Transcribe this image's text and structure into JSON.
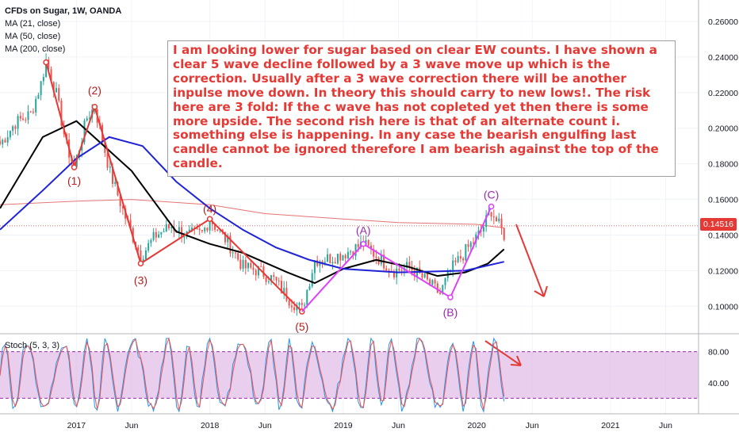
{
  "header": {
    "title": "CFDs on Sugar, 1W, OANDA",
    "indicators": [
      "MA (21, close)",
      "MA (50, close)",
      "MA (200, close)"
    ],
    "stoch_label": "Stoch (5, 3, 3)"
  },
  "annotation_text": "I am looking lower for sugar based on clear EW counts. I have shown a clear 5 wave decline followed by a 3 wave move up which is the correction. Usually after a 3 wave correction there will be another inpulse move down. In theory this should carry to new lows!. The risk here are 3 fold: If the c wave has not copleted yet then there is some more upside. The second rish here is that of an alternate count i. something else is happening. In any case the bearish engulfing last candle cannot be ignored therefore I am bearish against the top of the candle.",
  "colors": {
    "up_candle": "#26a69a",
    "down_candle": "#ef5350",
    "ma21": "#000000",
    "ma50": "#1e22d8",
    "ma200": "#e57373",
    "wave_red": "#e53935",
    "wave_purple": "#e040fb",
    "stoch_k": "#2196f3",
    "stoch_d": "#ef5350",
    "stoch_band": "#e1bee7"
  },
  "chart_data": {
    "type": "candlestick",
    "symbol": "CFDs on Sugar",
    "interval": "1W",
    "x_ticks": [
      "2017",
      "Jun",
      "2018",
      "Jun",
      "2019",
      "Jun",
      "2020",
      "Jun",
      "2021",
      "Jun"
    ],
    "x_tick_dates": [
      "2017-01-01",
      "2017-06-01",
      "2018-01-01",
      "2018-06-01",
      "2019-01-01",
      "2019-06-01",
      "2020-01-01",
      "2020-06-01",
      "2021-01-01",
      "2021-06-01"
    ],
    "y_ticks": [
      "0.10000",
      "0.12000",
      "0.14000",
      "0.16000",
      "0.18000",
      "0.20000",
      "0.22000",
      "0.24000",
      "0.26000"
    ],
    "ylim": [
      0.085,
      0.272
    ],
    "last_price": "0.14516",
    "price_path": [
      [
        "2016-06-06",
        0.191
      ],
      [
        "2016-07-18",
        0.203
      ],
      [
        "2016-08-29",
        0.208
      ],
      [
        "2016-09-26",
        0.225
      ],
      [
        "2016-10-10",
        0.238
      ],
      [
        "2016-11-07",
        0.219
      ],
      [
        "2016-12-05",
        0.19
      ],
      [
        "2016-12-26",
        0.178
      ],
      [
        "2017-01-30",
        0.206
      ],
      [
        "2017-02-20",
        0.212
      ],
      [
        "2017-04-03",
        0.175
      ],
      [
        "2017-05-15",
        0.15
      ],
      [
        "2017-06-26",
        0.128
      ],
      [
        "2017-08-07",
        0.14
      ],
      [
        "2017-09-18",
        0.145
      ],
      [
        "2017-10-30",
        0.14
      ],
      [
        "2017-12-11",
        0.141
      ],
      [
        "2018-01-01",
        0.149
      ],
      [
        "2018-02-19",
        0.136
      ],
      [
        "2018-04-02",
        0.122
      ],
      [
        "2018-05-14",
        0.12
      ],
      [
        "2018-06-25",
        0.115
      ],
      [
        "2018-08-06",
        0.104
      ],
      [
        "2018-09-10",
        0.098
      ],
      [
        "2018-10-15",
        0.126
      ],
      [
        "2018-11-26",
        0.127
      ],
      [
        "2019-01-07",
        0.13
      ],
      [
        "2019-02-25",
        0.135
      ],
      [
        "2019-04-08",
        0.127
      ],
      [
        "2019-05-20",
        0.12
      ],
      [
        "2019-07-01",
        0.122
      ],
      [
        "2019-08-12",
        0.115
      ],
      [
        "2019-09-23",
        0.107
      ],
      [
        "2019-10-21",
        0.12
      ],
      [
        "2019-12-02",
        0.131
      ],
      [
        "2020-01-13",
        0.142
      ],
      [
        "2020-02-10",
        0.154
      ],
      [
        "2020-02-24",
        0.148
      ],
      [
        "2020-03-16",
        0.14
      ]
    ],
    "series": [
      {
        "name": "MA (21, close)",
        "points": [
          [
            "2016-06-06",
            0.155
          ],
          [
            "2016-10-01",
            0.195
          ],
          [
            "2017-01-01",
            0.204
          ],
          [
            "2017-06-01",
            0.176
          ],
          [
            "2017-10-01",
            0.142
          ],
          [
            "2018-01-01",
            0.135
          ],
          [
            "2018-04-01",
            0.13
          ],
          [
            "2018-08-01",
            0.119
          ],
          [
            "2018-10-15",
            0.113
          ],
          [
            "2019-01-01",
            0.121
          ],
          [
            "2019-04-01",
            0.126
          ],
          [
            "2019-07-01",
            0.122
          ],
          [
            "2019-09-15",
            0.117
          ],
          [
            "2019-12-01",
            0.119
          ],
          [
            "2020-02-01",
            0.124
          ],
          [
            "2020-03-16",
            0.132
          ]
        ]
      },
      {
        "name": "MA (50, close)",
        "points": [
          [
            "2016-06-06",
            0.143
          ],
          [
            "2016-10-01",
            0.165
          ],
          [
            "2017-01-01",
            0.183
          ],
          [
            "2017-04-01",
            0.195
          ],
          [
            "2017-07-01",
            0.19
          ],
          [
            "2017-10-01",
            0.17
          ],
          [
            "2018-01-01",
            0.155
          ],
          [
            "2018-04-01",
            0.143
          ],
          [
            "2018-07-01",
            0.133
          ],
          [
            "2018-10-01",
            0.126
          ],
          [
            "2019-01-01",
            0.121
          ],
          [
            "2019-06-01",
            0.119
          ],
          [
            "2019-12-01",
            0.12
          ],
          [
            "2020-03-16",
            0.125
          ]
        ]
      },
      {
        "name": "MA (200, close)",
        "points": [
          [
            "2016-06-06",
            0.157
          ],
          [
            "2017-01-01",
            0.159
          ],
          [
            "2017-06-01",
            0.16
          ],
          [
            "2018-01-01",
            0.157
          ],
          [
            "2018-06-01",
            0.152
          ],
          [
            "2019-01-01",
            0.149
          ],
          [
            "2019-06-01",
            0.147
          ],
          [
            "2020-01-01",
            0.146
          ],
          [
            "2020-03-16",
            0.144
          ]
        ]
      }
    ],
    "red_wave_labels": [
      {
        "label": "(1)",
        "date": "2016-12-26",
        "price": 0.178
      },
      {
        "label": "(2)",
        "date": "2017-02-20",
        "price": 0.212
      },
      {
        "label": "(3)",
        "date": "2017-06-26",
        "price": 0.124
      },
      {
        "label": "(4)",
        "date": "2018-01-01",
        "price": 0.149
      },
      {
        "label": "(5)",
        "date": "2018-09-10",
        "price": 0.097
      }
    ],
    "purple_wave_labels": [
      {
        "label": "(A)",
        "date": "2019-02-25",
        "price": 0.135
      },
      {
        "label": "(B)",
        "date": "2019-10-21",
        "price": 0.105
      },
      {
        "label": "(C)",
        "date": "2020-02-10",
        "price": 0.156
      }
    ],
    "stochastic": {
      "name": "Stoch (5, 3, 3)",
      "y_ticks": [
        "40.00",
        "80.00"
      ],
      "upper_band": 80,
      "lower_band": 20
    }
  }
}
